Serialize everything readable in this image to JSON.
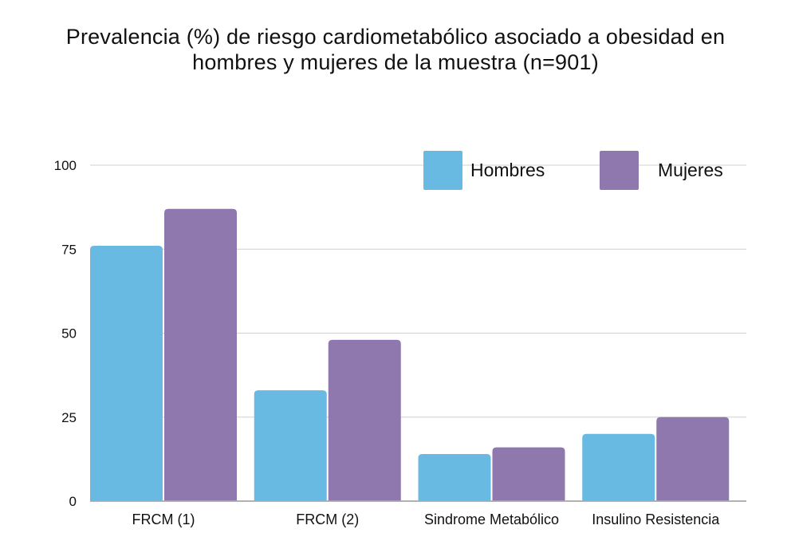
{
  "chart_data": {
    "type": "bar",
    "title": "Prevalencia (%) de riesgo cardiometabólico asociado a obesidad en hombres y mujeres de la muestra (n=901)",
    "title_lines": [
      "Prevalencia (%) de riesgo cardiometabólico asociado a obesidad en",
      "hombres y mujeres de la muestra (n=901)"
    ],
    "xlabel": "",
    "ylabel": "",
    "categories": [
      "FRCM (1)",
      "FRCM (2)",
      "Sindrome Metabólico",
      "Insulino Resistencia"
    ],
    "series": [
      {
        "name": "Hombres",
        "color": "#68bae2",
        "values": [
          76,
          33,
          14,
          20
        ]
      },
      {
        "name": "Mujeres",
        "color": "#8e78ad",
        "values": [
          87,
          48,
          16,
          25
        ]
      }
    ],
    "ylim": [
      0,
      100
    ],
    "yticks": [
      "0",
      "25",
      "50",
      "75",
      "100"
    ],
    "grid": true,
    "legend_position": "top-right"
  }
}
